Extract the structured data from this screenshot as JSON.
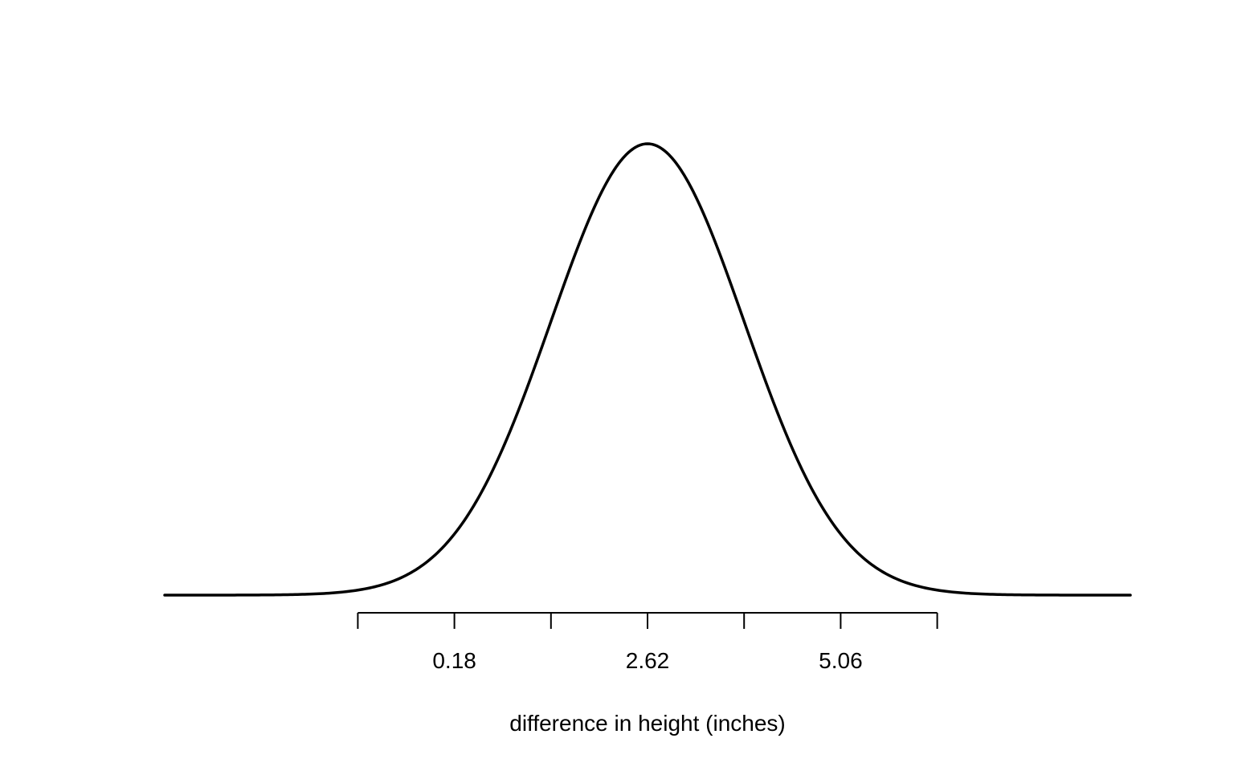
{
  "chart_data": {
    "type": "line",
    "title": "",
    "xlabel": "difference in height (inches)",
    "ylabel": "",
    "distribution": "normal",
    "mean": 2.62,
    "sd": 1.22,
    "xlim": [
      -3.48,
      8.72
    ],
    "curve_x_range": [
      -3.48,
      8.72
    ],
    "axis_ticks": [
      -1.04,
      0.18,
      1.4,
      2.62,
      3.84,
      5.06,
      6.28
    ],
    "tick_labels": [
      {
        "value": 0.18,
        "label": "0.18"
      },
      {
        "value": 2.62,
        "label": "2.62"
      },
      {
        "value": 5.06,
        "label": "5.06"
      }
    ],
    "grid": false,
    "y_axis_shown": false,
    "series": [
      {
        "color": "#000000"
      }
    ]
  }
}
